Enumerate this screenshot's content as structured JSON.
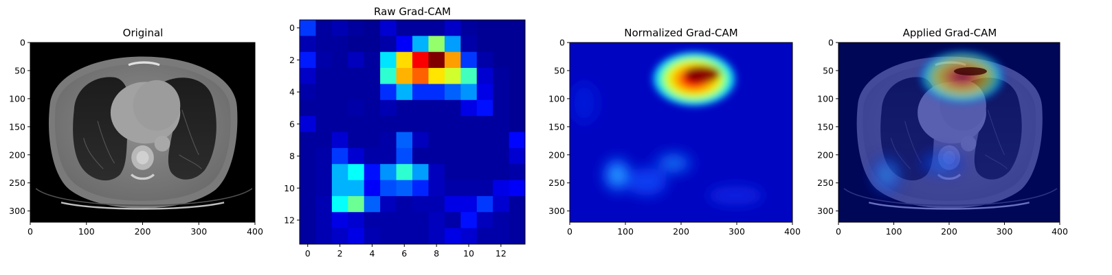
{
  "panels": [
    {
      "id": "original",
      "title": "Original",
      "kind": "ct-image",
      "x_ticks": [
        "0",
        "100",
        "200",
        "300",
        "400"
      ],
      "y_ticks": [
        "0",
        "50",
        "100",
        "150",
        "200",
        "250",
        "300"
      ],
      "x_tick_values": [
        0,
        100,
        200,
        300,
        400
      ],
      "y_tick_values": [
        0,
        50,
        100,
        150,
        200,
        250,
        300
      ],
      "xlim": [
        0,
        400
      ],
      "ylim": [
        320,
        0
      ]
    },
    {
      "id": "raw",
      "title": "Raw Grad-CAM",
      "kind": "heatmap",
      "x_ticks": [
        "0",
        "2",
        "4",
        "6",
        "8",
        "10",
        "12"
      ],
      "y_ticks": [
        "0",
        "2",
        "4",
        "6",
        "8",
        "10",
        "12"
      ],
      "x_tick_values": [
        0,
        2,
        4,
        6,
        8,
        10,
        12
      ],
      "y_tick_values": [
        0,
        2,
        4,
        6,
        8,
        10,
        12
      ],
      "xlim": [
        -0.5,
        13.5
      ],
      "ylim": [
        13.5,
        -0.5
      ]
    },
    {
      "id": "normalized",
      "title": "Normalized Grad-CAM",
      "kind": "smooth-heatmap",
      "x_ticks": [
        "0",
        "100",
        "200",
        "300",
        "400"
      ],
      "y_ticks": [
        "0",
        "50",
        "100",
        "150",
        "200",
        "250",
        "300"
      ],
      "x_tick_values": [
        0,
        100,
        200,
        300,
        400
      ],
      "y_tick_values": [
        0,
        50,
        100,
        150,
        200,
        250,
        300
      ],
      "xlim": [
        0,
        400
      ],
      "ylim": [
        320,
        0
      ]
    },
    {
      "id": "applied",
      "title": "Applied Grad-CAM",
      "kind": "overlay",
      "x_ticks": [
        "0",
        "100",
        "200",
        "300",
        "400"
      ],
      "y_ticks": [
        "0",
        "50",
        "100",
        "150",
        "200",
        "250",
        "300"
      ],
      "x_tick_values": [
        0,
        100,
        200,
        300,
        400
      ],
      "y_tick_values": [
        0,
        50,
        100,
        150,
        200,
        250,
        300
      ],
      "xlim": [
        0,
        400
      ],
      "ylim": [
        320,
        0
      ]
    }
  ],
  "chart_data": {
    "type": "heatmap",
    "title": "Raw Grad-CAM",
    "colormap": "jet",
    "grid": false,
    "shape": [
      14,
      14
    ],
    "values": [
      [
        0.18,
        0.03,
        0.05,
        0.03,
        0.02,
        0.08,
        0.03,
        0.03,
        0.03,
        0.07,
        0.03,
        0.02,
        0.02,
        0.02
      ],
      [
        0.05,
        0.03,
        0.03,
        0.02,
        0.02,
        0.04,
        0.12,
        0.3,
        0.52,
        0.28,
        0.04,
        0.02,
        0.02,
        0.02
      ],
      [
        0.15,
        0.04,
        0.03,
        0.06,
        0.03,
        0.35,
        0.66,
        0.88,
        1.0,
        0.72,
        0.18,
        0.04,
        0.02,
        0.02
      ],
      [
        0.07,
        0.03,
        0.03,
        0.03,
        0.03,
        0.42,
        0.7,
        0.78,
        0.65,
        0.58,
        0.44,
        0.08,
        0.03,
        0.02
      ],
      [
        0.04,
        0.03,
        0.03,
        0.03,
        0.03,
        0.17,
        0.3,
        0.17,
        0.17,
        0.22,
        0.27,
        0.1,
        0.03,
        0.02
      ],
      [
        0.03,
        0.03,
        0.03,
        0.04,
        0.03,
        0.05,
        0.03,
        0.03,
        0.03,
        0.03,
        0.1,
        0.14,
        0.03,
        0.02
      ],
      [
        0.09,
        0.03,
        0.03,
        0.03,
        0.03,
        0.03,
        0.03,
        0.03,
        0.03,
        0.03,
        0.03,
        0.03,
        0.03,
        0.02
      ],
      [
        0.03,
        0.03,
        0.08,
        0.03,
        0.03,
        0.04,
        0.22,
        0.06,
        0.03,
        0.03,
        0.03,
        0.03,
        0.03,
        0.13
      ],
      [
        0.03,
        0.04,
        0.18,
        0.08,
        0.04,
        0.04,
        0.2,
        0.03,
        0.03,
        0.03,
        0.03,
        0.03,
        0.03,
        0.08
      ],
      [
        0.03,
        0.04,
        0.3,
        0.38,
        0.14,
        0.27,
        0.42,
        0.28,
        0.06,
        0.03,
        0.03,
        0.03,
        0.03,
        0.04
      ],
      [
        0.03,
        0.04,
        0.3,
        0.3,
        0.12,
        0.2,
        0.22,
        0.16,
        0.06,
        0.04,
        0.04,
        0.04,
        0.1,
        0.12
      ],
      [
        0.03,
        0.05,
        0.38,
        0.48,
        0.22,
        0.06,
        0.04,
        0.05,
        0.05,
        0.1,
        0.1,
        0.18,
        0.08,
        0.03
      ],
      [
        0.03,
        0.05,
        0.1,
        0.08,
        0.04,
        0.04,
        0.04,
        0.04,
        0.06,
        0.04,
        0.14,
        0.06,
        0.04,
        0.03
      ],
      [
        0.03,
        0.05,
        0.07,
        0.1,
        0.05,
        0.04,
        0.04,
        0.04,
        0.06,
        0.1,
        0.08,
        0.04,
        0.04,
        0.03
      ]
    ]
  }
}
